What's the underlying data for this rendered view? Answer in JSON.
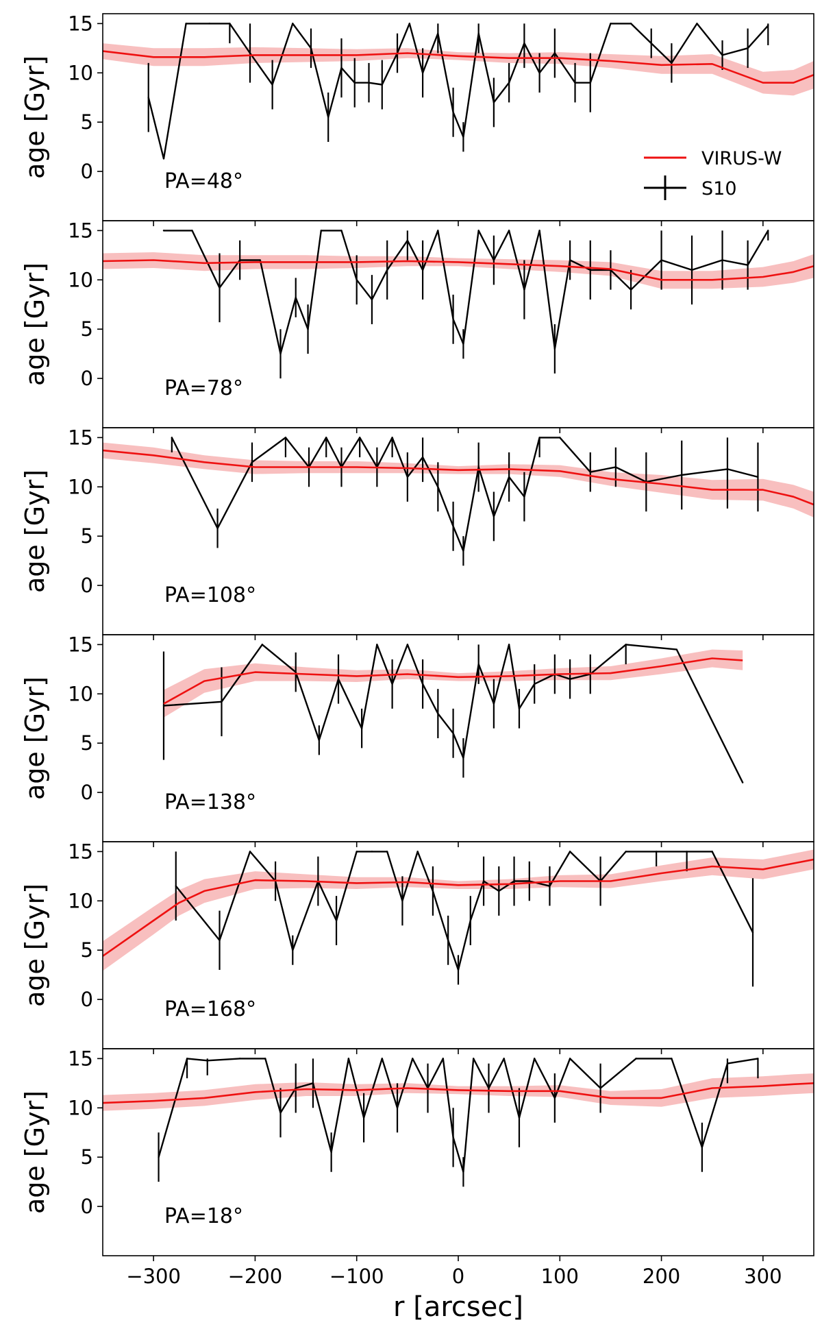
{
  "chart_data": {
    "type": "line",
    "xlabel": "r [arcsec]",
    "ylabel": "age [Gyr]",
    "xlim": [
      -350,
      350
    ],
    "ylim": [
      -5,
      16
    ],
    "xticks": [
      -300,
      -200,
      -100,
      0,
      100,
      200,
      300
    ],
    "xtick_labels": [
      "−300",
      "−200",
      "−100",
      "0",
      "100",
      "200",
      "300"
    ],
    "yticks": [
      0,
      5,
      10,
      15
    ],
    "ytick_labels": [
      "0",
      "5",
      "10",
      "15"
    ],
    "legend": {
      "placement": "upper-right of first panel",
      "entries": [
        "VIRUS-W",
        "S10"
      ]
    },
    "colors": {
      "virus_line": "#ee1111",
      "virus_band": "#f5a9a9",
      "s10": "#000000"
    },
    "panels": [
      {
        "label": "PA=48°",
        "virus_w": {
          "x": [
            -350,
            -300,
            -250,
            -200,
            -150,
            -100,
            -50,
            0,
            50,
            100,
            150,
            200,
            250,
            300,
            330,
            350
          ],
          "y": [
            12.2,
            11.6,
            11.6,
            11.8,
            11.8,
            11.8,
            12.0,
            11.7,
            11.5,
            11.5,
            11.2,
            10.8,
            10.9,
            9.0,
            9.0,
            9.8
          ],
          "err": [
            0.8,
            0.9,
            0.9,
            0.8,
            0.7,
            0.6,
            0.5,
            0.4,
            0.5,
            0.6,
            0.7,
            0.9,
            1.0,
            1.1,
            1.3,
            1.4
          ]
        },
        "s10": {
          "x": [
            -305,
            -290,
            -268,
            -245,
            -225,
            -205,
            -183,
            -163,
            -145,
            -128,
            -115,
            -102,
            -88,
            -75,
            -60,
            -48,
            -35,
            -20,
            -5,
            5,
            20,
            35,
            50,
            65,
            80,
            95,
            115,
            130,
            150,
            170,
            190,
            210,
            235,
            260,
            285,
            305
          ],
          "y": [
            7.5,
            1.3,
            15,
            15,
            15,
            12.0,
            8.8,
            15,
            12.5,
            5.5,
            10.5,
            9.0,
            9.0,
            8.8,
            12,
            15,
            10,
            14,
            6,
            3.5,
            14,
            7,
            9,
            13,
            10,
            12,
            9,
            9,
            15,
            15,
            13,
            11,
            15,
            11.8,
            12.5,
            14.8
          ],
          "err": [
            3.5,
            0,
            0,
            0,
            2.0,
            3.0,
            2.5,
            0,
            2.0,
            2.5,
            3.0,
            2.5,
            2.0,
            2.5,
            2.0,
            0,
            2.5,
            2.0,
            2.5,
            1.5,
            2.0,
            2.5,
            2.0,
            2.5,
            2.0,
            2.5,
            2.0,
            3.0,
            0,
            0,
            1.5,
            2.0,
            0,
            1.5,
            2.0,
            2.0
          ]
        }
      },
      {
        "label": "PA=78°",
        "virus_w": {
          "x": [
            -350,
            -300,
            -250,
            -200,
            -150,
            -100,
            -50,
            0,
            50,
            100,
            150,
            200,
            250,
            300,
            330,
            350
          ],
          "y": [
            11.9,
            12.0,
            11.7,
            11.8,
            11.8,
            11.8,
            11.9,
            11.8,
            11.6,
            11.4,
            11.1,
            10.0,
            10.0,
            10.3,
            10.8,
            11.4
          ],
          "err": [
            0.8,
            0.8,
            0.8,
            0.7,
            0.7,
            0.6,
            0.5,
            0.4,
            0.5,
            0.6,
            0.7,
            0.9,
            0.9,
            1.0,
            1.1,
            1.2
          ]
        },
        "s10": {
          "x": [
            -290,
            -262,
            -235,
            -215,
            -195,
            -175,
            -160,
            -148,
            -135,
            -115,
            -100,
            -85,
            -70,
            -50,
            -35,
            -20,
            -5,
            5,
            20,
            35,
            50,
            65,
            80,
            95,
            110,
            130,
            150,
            170,
            200,
            230,
            260,
            285,
            305
          ],
          "y": [
            15,
            15,
            9.2,
            12,
            12.0,
            2.5,
            8.2,
            5.0,
            15,
            15,
            10,
            8,
            11,
            14,
            11,
            15,
            6,
            3.5,
            15,
            12,
            15,
            9,
            15,
            3.0,
            12,
            11,
            11,
            9,
            12,
            11,
            12,
            11.5,
            15
          ],
          "err": [
            0,
            0,
            3.5,
            2.0,
            0,
            2.5,
            2.0,
            2.5,
            0,
            0,
            2.5,
            2.5,
            3.0,
            2.0,
            3.0,
            0,
            2.5,
            1.5,
            0,
            2.5,
            0,
            3.0,
            0,
            2.5,
            2.0,
            3.0,
            2.0,
            2.0,
            3.0,
            3.5,
            3.0,
            2.5,
            1.0
          ]
        }
      },
      {
        "label": "PA=108°",
        "virus_w": {
          "x": [
            -350,
            -300,
            -250,
            -200,
            -150,
            -100,
            -50,
            0,
            50,
            100,
            150,
            200,
            250,
            300,
            330,
            350
          ],
          "y": [
            13.7,
            13.2,
            12.5,
            12.0,
            12.0,
            12.0,
            11.9,
            11.7,
            11.8,
            11.6,
            10.8,
            10.3,
            9.7,
            9.7,
            9.0,
            8.2
          ],
          "err": [
            0.8,
            0.8,
            0.7,
            0.7,
            0.6,
            0.6,
            0.5,
            0.4,
            0.5,
            0.6,
            0.7,
            0.9,
            1.0,
            1.1,
            1.2,
            1.3
          ]
        },
        "s10": {
          "x": [
            -282,
            -237,
            -203,
            -170,
            -147,
            -130,
            -115,
            -97,
            -80,
            -65,
            -50,
            -35,
            -20,
            -5,
            5,
            20,
            35,
            50,
            65,
            80,
            100,
            130,
            155,
            185,
            220,
            265,
            295
          ],
          "y": [
            15,
            5.8,
            12.5,
            15,
            12,
            15,
            12,
            15,
            12,
            15,
            11,
            13,
            10,
            6,
            3.5,
            12,
            7,
            11,
            9,
            15,
            15,
            11.5,
            12,
            10.5,
            11.2,
            11.8,
            11.0
          ],
          "err": [
            1.5,
            2.0,
            2.0,
            2.0,
            2.0,
            2.0,
            2.0,
            2.0,
            2.0,
            2.0,
            2.5,
            2.5,
            2.5,
            2.5,
            1.5,
            2.5,
            2.5,
            2.5,
            2.5,
            2.0,
            0,
            2.0,
            2.0,
            3.0,
            3.5,
            4.0,
            3.5
          ]
        }
      },
      {
        "label": "PA=138°",
        "virus_w": {
          "x": [
            -290,
            -250,
            -200,
            -150,
            -100,
            -50,
            0,
            50,
            100,
            150,
            200,
            250,
            280
          ],
          "y": [
            9.0,
            11.3,
            12.2,
            12.0,
            11.8,
            12.0,
            11.7,
            11.8,
            12.0,
            12.1,
            12.8,
            13.6,
            13.4
          ],
          "err": [
            1.4,
            1.2,
            0.9,
            0.7,
            0.6,
            0.5,
            0.4,
            0.5,
            0.6,
            0.7,
            0.8,
            0.9,
            1.0
          ]
        },
        "s10": {
          "x": [
            -290,
            -233,
            -193,
            -160,
            -137,
            -118,
            -95,
            -80,
            -65,
            -50,
            -35,
            -20,
            -5,
            5,
            20,
            35,
            50,
            60,
            75,
            95,
            110,
            130,
            165,
            215,
            280
          ],
          "y": [
            8.8,
            9.2,
            15,
            12.2,
            5.3,
            11.5,
            6.5,
            15,
            11,
            15,
            11,
            8,
            6,
            3.5,
            13,
            9,
            15,
            8.5,
            11,
            12,
            11.5,
            12,
            15,
            14.5,
            1.0
          ],
          "err": [
            5.5,
            3.5,
            0,
            2.0,
            1.5,
            2.5,
            2.0,
            0,
            2.5,
            0,
            2.5,
            2.5,
            2.5,
            2.0,
            2.0,
            2.5,
            0,
            2.0,
            2.0,
            2.0,
            2.0,
            2.0,
            2.0,
            0,
            0
          ]
        }
      },
      {
        "label": "PA=168°",
        "virus_w": {
          "x": [
            -350,
            -300,
            -275,
            -250,
            -200,
            -150,
            -100,
            -50,
            0,
            50,
            100,
            150,
            200,
            250,
            300,
            330,
            350
          ],
          "y": [
            4.4,
            8.0,
            9.8,
            11.0,
            12.1,
            12.0,
            11.8,
            11.9,
            11.6,
            11.7,
            12.0,
            12.0,
            12.8,
            13.5,
            13.2,
            13.8,
            14.2
          ],
          "err": [
            1.5,
            1.4,
            1.3,
            1.2,
            0.9,
            0.7,
            0.6,
            0.5,
            0.4,
            0.5,
            0.6,
            0.7,
            0.8,
            0.9,
            1.0,
            1.0,
            1.0
          ]
        },
        "s10": {
          "x": [
            -278,
            -235,
            -205,
            -180,
            -163,
            -138,
            -120,
            -100,
            -85,
            -70,
            -55,
            -40,
            -25,
            -10,
            0,
            12,
            25,
            40,
            55,
            70,
            90,
            110,
            140,
            165,
            195,
            225,
            250,
            290
          ],
          "y": [
            11.5,
            6.0,
            15,
            12.0,
            5.0,
            12,
            8,
            15,
            15,
            15,
            10,
            15,
            11,
            6,
            3.0,
            8,
            12,
            11,
            12,
            12,
            11.5,
            15,
            12,
            15,
            15,
            15,
            15,
            6.8
          ],
          "err": [
            3.5,
            3.0,
            0,
            2.0,
            1.5,
            2.5,
            2.5,
            0,
            0,
            0,
            2.5,
            0,
            2.5,
            2.5,
            1.5,
            2.5,
            2.5,
            2.5,
            2.5,
            2.0,
            2.0,
            0,
            2.5,
            0,
            1.5,
            2.0,
            0,
            5.5
          ]
        }
      },
      {
        "label": "PA=18°",
        "virus_w": {
          "x": [
            -350,
            -300,
            -250,
            -200,
            -150,
            -100,
            -50,
            0,
            50,
            100,
            150,
            200,
            250,
            300,
            330,
            350
          ],
          "y": [
            10.5,
            10.7,
            11.0,
            11.6,
            11.9,
            11.8,
            12.0,
            11.8,
            11.7,
            11.7,
            11.0,
            11.0,
            12.0,
            12.2,
            12.4,
            12.5
          ],
          "err": [
            0.8,
            0.8,
            0.8,
            0.8,
            0.7,
            0.6,
            0.5,
            0.4,
            0.5,
            0.6,
            0.7,
            0.9,
            1.0,
            1.0,
            1.0,
            1.0
          ]
        },
        "s10": {
          "x": [
            -295,
            -267,
            -247,
            -215,
            -190,
            -175,
            -160,
            -143,
            -125,
            -108,
            -93,
            -75,
            -60,
            -45,
            -30,
            -15,
            -5,
            5,
            15,
            30,
            45,
            60,
            75,
            95,
            110,
            140,
            175,
            210,
            240,
            265,
            295
          ],
          "y": [
            5,
            15,
            14.8,
            15,
            15,
            9.5,
            12,
            12.5,
            5.5,
            15,
            9,
            15,
            10,
            15,
            12,
            15,
            7,
            3.5,
            15,
            12,
            15,
            9,
            15,
            11,
            15,
            12,
            15,
            15,
            6.0,
            14.5,
            15
          ],
          "err": [
            2.5,
            2.0,
            1.5,
            0,
            0,
            2.5,
            2.5,
            2.5,
            2.0,
            0,
            2.5,
            0,
            2.5,
            0,
            2.5,
            0,
            3.0,
            1.5,
            0,
            2.5,
            0,
            3.0,
            0,
            2.5,
            0,
            2.5,
            0,
            0,
            2.5,
            2.0,
            2.0
          ]
        }
      }
    ]
  }
}
